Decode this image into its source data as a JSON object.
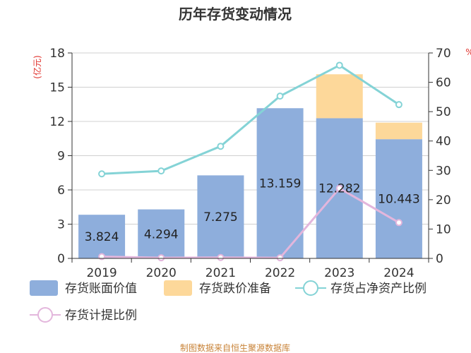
{
  "chart_data": {
    "type": "bar",
    "title": "历年存货变动情况",
    "categories": [
      "2019",
      "2020",
      "2021",
      "2022",
      "2023",
      "2024"
    ],
    "series": [
      {
        "name": "存货账面价值",
        "type": "bar",
        "axis": "left",
        "color": "#8eaedc",
        "values": [
          3.824,
          4.294,
          7.275,
          13.159,
          12.282,
          10.443
        ]
      },
      {
        "name": "存货跌价准备",
        "type": "bar",
        "stacked": true,
        "axis": "left",
        "color": "#fdd89a",
        "values": [
          0.0,
          0.0,
          0.0,
          0.0,
          3.85,
          1.45
        ]
      },
      {
        "name": "存货占净资产比例",
        "type": "line",
        "axis": "right",
        "color": "#84d3d6",
        "values": [
          28.8,
          29.8,
          38.2,
          55.3,
          65.8,
          52.4
        ]
      },
      {
        "name": "存货计提比例",
        "type": "line",
        "axis": "right",
        "color": "#e3b6dc",
        "values": [
          0.6,
          0.2,
          0.3,
          0.2,
          23.9,
          12.2
        ]
      }
    ],
    "bar_labels": [
      "3.824",
      "4.294",
      "7.275",
      "13.159",
      "12.282",
      "10.443"
    ],
    "y_left": {
      "unit": "(亿元)",
      "ylim": [
        0,
        18
      ],
      "ticks": [
        0,
        3,
        6,
        9,
        12,
        15,
        18
      ]
    },
    "y_right": {
      "unit": "%",
      "ylim": [
        0,
        70
      ],
      "ticks": [
        0,
        10,
        20,
        30,
        40,
        50,
        60,
        70
      ]
    },
    "grid": true,
    "legend_position": "bottom"
  },
  "footer": {
    "source": "制图数据来自恒生聚源数据库"
  }
}
